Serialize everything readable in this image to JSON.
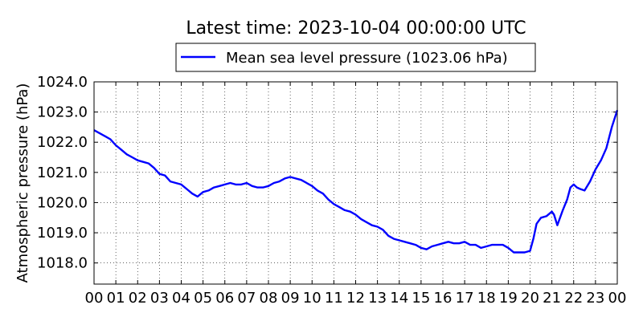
{
  "chart_data": {
    "type": "line",
    "title": "Latest time: 2023-10-04 00:00:00 UTC",
    "ylabel": "Atmospheric pressure (hPa)",
    "xlabel": "",
    "xlim": [
      0,
      24
    ],
    "ylim": [
      1017.3,
      1024.0
    ],
    "grid": true,
    "legend_position": "top-center",
    "x_ticks": [
      {
        "value": 0,
        "label": "00"
      },
      {
        "value": 1,
        "label": "01"
      },
      {
        "value": 2,
        "label": "02"
      },
      {
        "value": 3,
        "label": "03"
      },
      {
        "value": 4,
        "label": "04"
      },
      {
        "value": 5,
        "label": "05"
      },
      {
        "value": 6,
        "label": "06"
      },
      {
        "value": 7,
        "label": "07"
      },
      {
        "value": 8,
        "label": "08"
      },
      {
        "value": 9,
        "label": "09"
      },
      {
        "value": 10,
        "label": "10"
      },
      {
        "value": 11,
        "label": "11"
      },
      {
        "value": 12,
        "label": "12"
      },
      {
        "value": 13,
        "label": "13"
      },
      {
        "value": 14,
        "label": "14"
      },
      {
        "value": 15,
        "label": "15"
      },
      {
        "value": 16,
        "label": "16"
      },
      {
        "value": 17,
        "label": "17"
      },
      {
        "value": 18,
        "label": "18"
      },
      {
        "value": 19,
        "label": "19"
      },
      {
        "value": 20,
        "label": "20"
      },
      {
        "value": 21,
        "label": "21"
      },
      {
        "value": 22,
        "label": "22"
      },
      {
        "value": 23,
        "label": "23"
      },
      {
        "value": 24,
        "label": "00"
      }
    ],
    "y_ticks": [
      {
        "value": 1018.0,
        "label": "1018.0"
      },
      {
        "value": 1019.0,
        "label": "1019.0"
      },
      {
        "value": 1020.0,
        "label": "1020.0"
      },
      {
        "value": 1021.0,
        "label": "1021.0"
      },
      {
        "value": 1022.0,
        "label": "1022.0"
      },
      {
        "value": 1023.0,
        "label": "1023.0"
      },
      {
        "value": 1024.0,
        "label": "1024.0"
      }
    ],
    "series": [
      {
        "name": "Mean sea level pressure (1023.06 hPa)",
        "color": "#0000ff",
        "x": [
          0.0,
          0.25,
          0.5,
          0.75,
          1.0,
          1.25,
          1.5,
          1.75,
          2.0,
          2.25,
          2.5,
          2.75,
          3.0,
          3.25,
          3.5,
          3.75,
          4.0,
          4.25,
          4.5,
          4.75,
          5.0,
          5.25,
          5.5,
          5.75,
          6.0,
          6.25,
          6.5,
          6.75,
          7.0,
          7.25,
          7.5,
          7.75,
          8.0,
          8.25,
          8.5,
          8.75,
          9.0,
          9.25,
          9.5,
          9.75,
          10.0,
          10.25,
          10.5,
          10.75,
          11.0,
          11.25,
          11.5,
          11.75,
          12.0,
          12.25,
          12.5,
          12.75,
          13.0,
          13.25,
          13.5,
          13.75,
          14.0,
          14.25,
          14.5,
          14.75,
          15.0,
          15.25,
          15.5,
          15.75,
          16.0,
          16.25,
          16.5,
          16.75,
          17.0,
          17.25,
          17.5,
          17.75,
          18.0,
          18.25,
          18.5,
          18.75,
          19.0,
          19.25,
          19.5,
          19.75,
          20.0,
          20.15,
          20.3,
          20.5,
          20.75,
          21.0,
          21.1,
          21.25,
          21.5,
          21.7,
          21.85,
          22.0,
          22.15,
          22.3,
          22.5,
          22.75,
          23.0,
          23.25,
          23.5,
          23.75,
          24.0
        ],
        "y": [
          1022.4,
          1022.3,
          1022.2,
          1022.1,
          1021.9,
          1021.75,
          1021.6,
          1021.5,
          1021.4,
          1021.35,
          1021.3,
          1021.15,
          1020.95,
          1020.9,
          1020.7,
          1020.65,
          1020.6,
          1020.45,
          1020.3,
          1020.2,
          1020.35,
          1020.4,
          1020.5,
          1020.55,
          1020.6,
          1020.65,
          1020.6,
          1020.6,
          1020.65,
          1020.55,
          1020.5,
          1020.5,
          1020.55,
          1020.65,
          1020.7,
          1020.8,
          1020.85,
          1020.8,
          1020.75,
          1020.65,
          1020.55,
          1020.4,
          1020.3,
          1020.1,
          1019.95,
          1019.85,
          1019.75,
          1019.7,
          1019.6,
          1019.45,
          1019.35,
          1019.25,
          1019.2,
          1019.1,
          1018.9,
          1018.8,
          1018.75,
          1018.7,
          1018.65,
          1018.6,
          1018.5,
          1018.45,
          1018.55,
          1018.6,
          1018.65,
          1018.7,
          1018.65,
          1018.65,
          1018.7,
          1018.6,
          1018.6,
          1018.5,
          1018.55,
          1018.6,
          1018.6,
          1018.6,
          1018.5,
          1018.35,
          1018.35,
          1018.35,
          1018.4,
          1018.8,
          1019.3,
          1019.5,
          1019.55,
          1019.7,
          1019.6,
          1019.25,
          1019.75,
          1020.1,
          1020.5,
          1020.6,
          1020.5,
          1020.45,
          1020.4,
          1020.7,
          1021.1,
          1021.4,
          1021.8,
          1022.5,
          1023.06
        ]
      }
    ]
  }
}
